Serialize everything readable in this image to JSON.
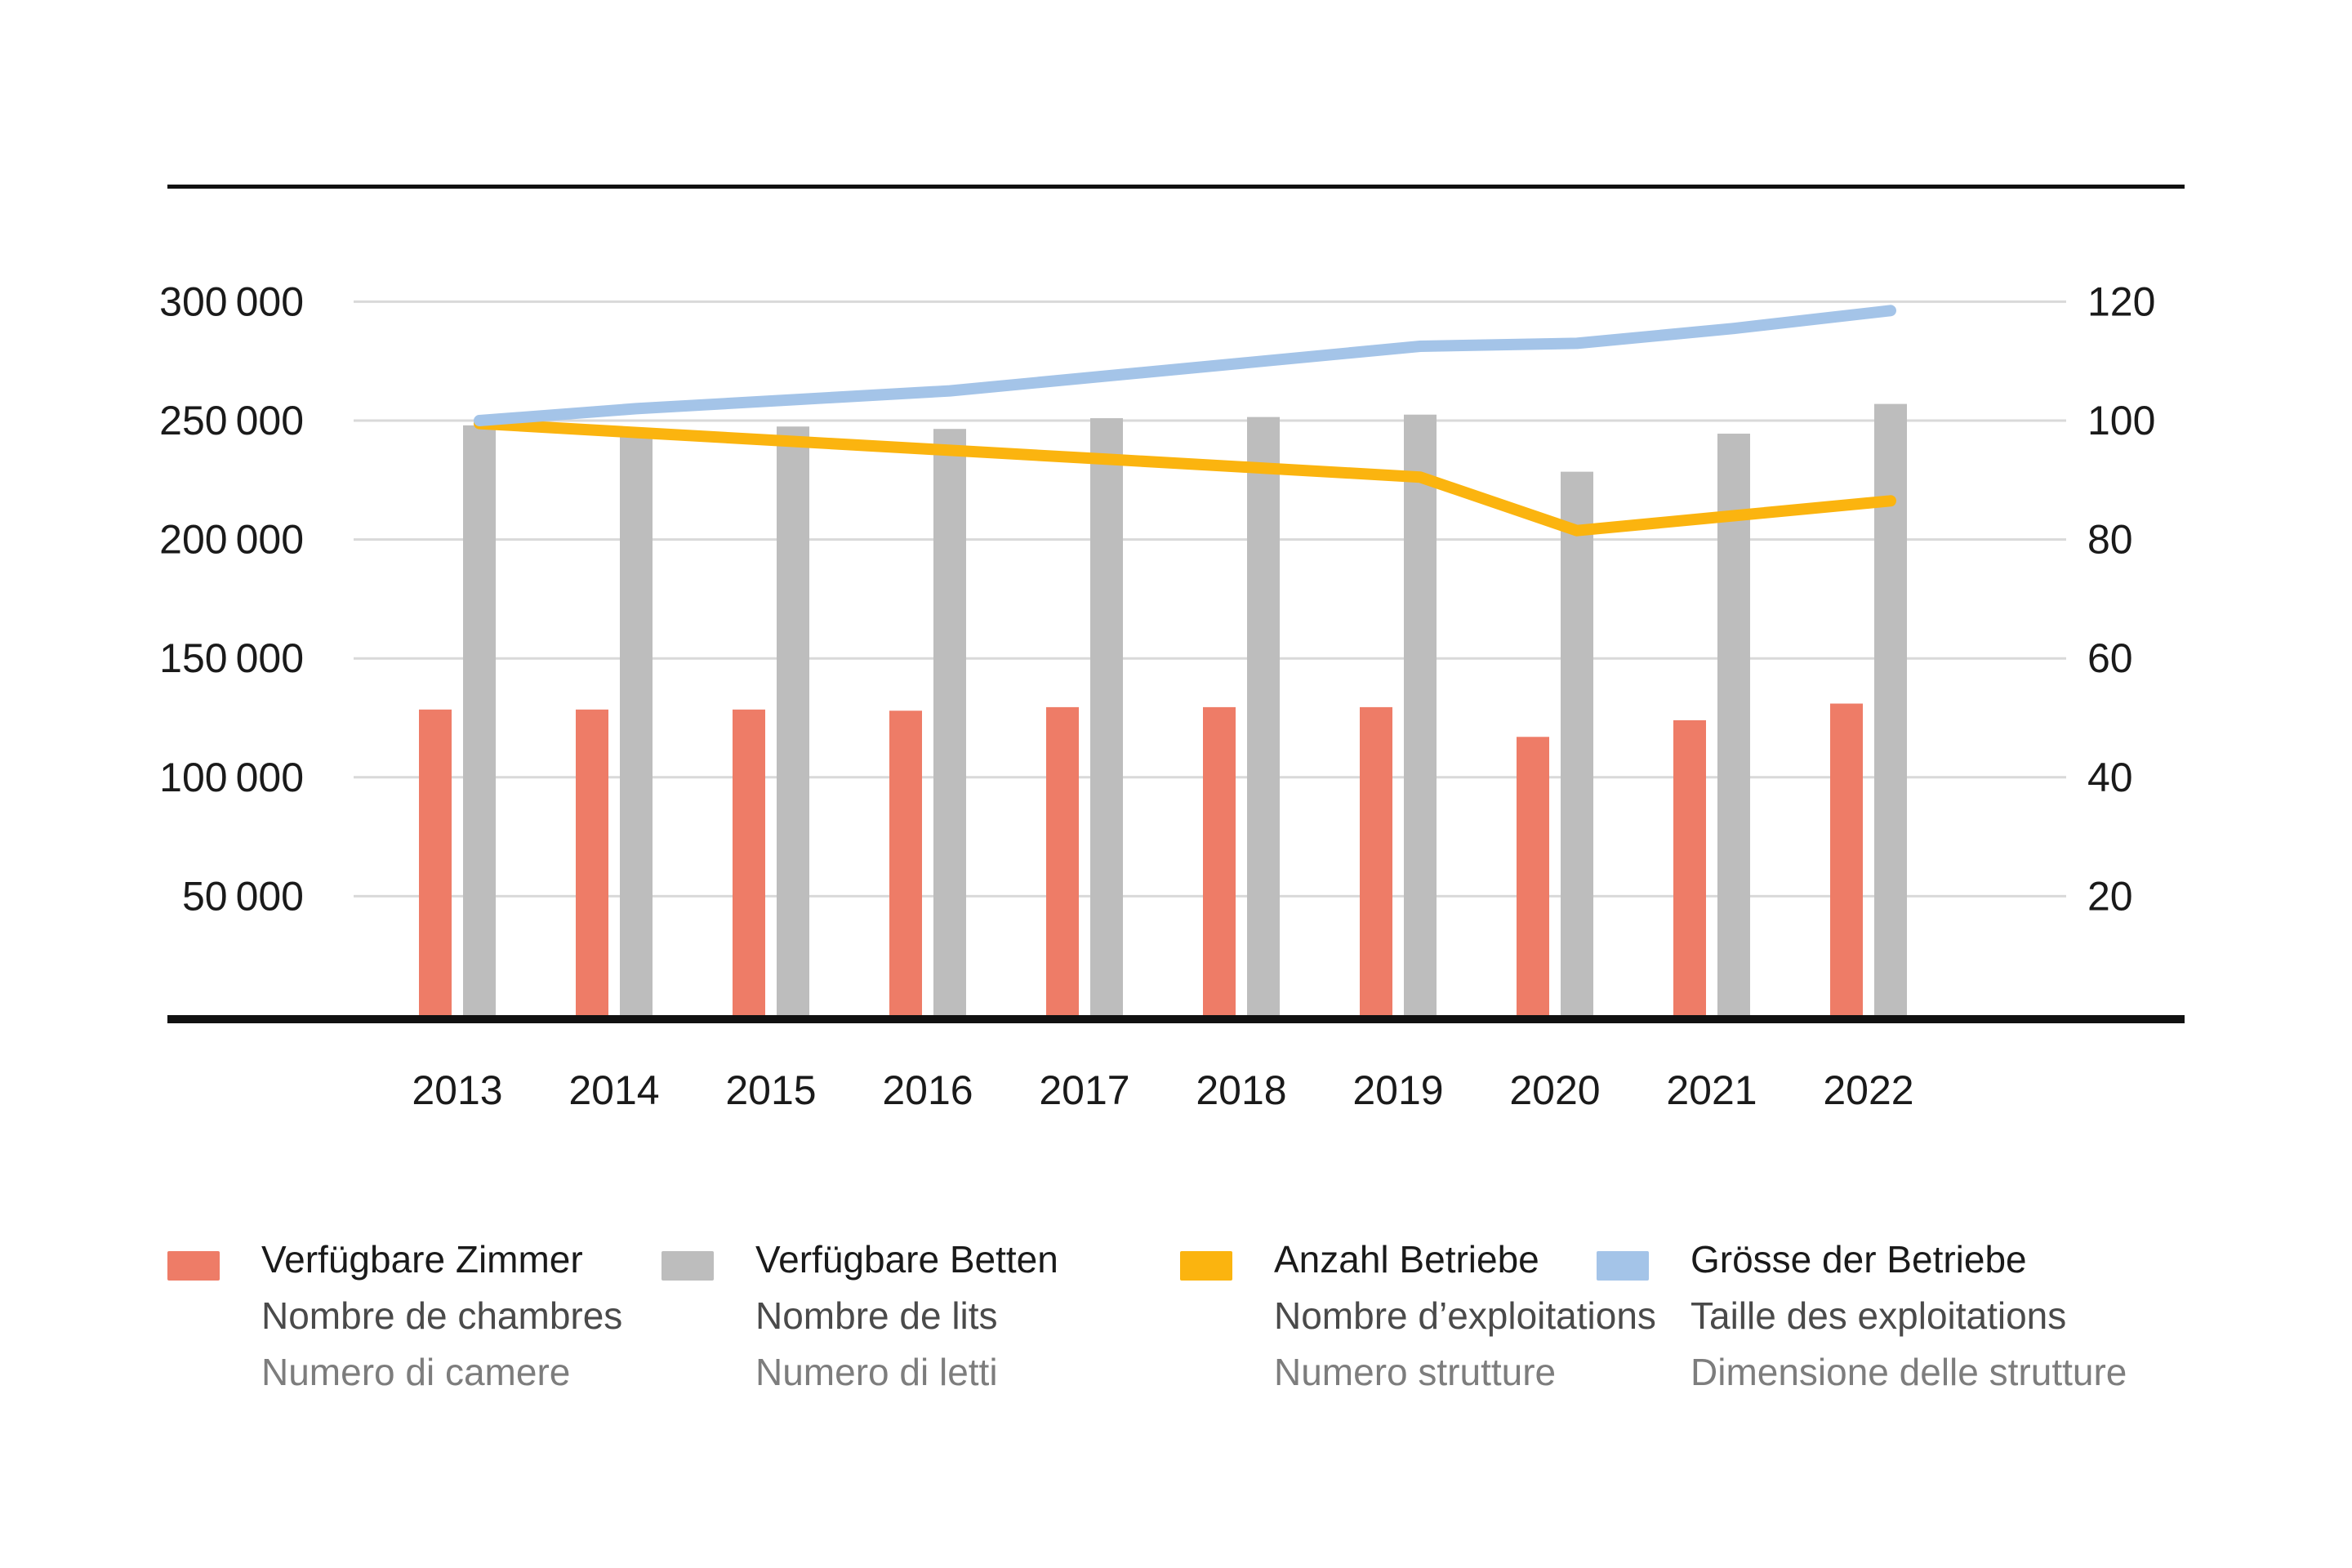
{
  "chart_data": {
    "type": "bar+line",
    "title": "",
    "categories": [
      "2013",
      "2014",
      "2015",
      "2016",
      "2017",
      "2018",
      "2019",
      "2020",
      "2021",
      "2022"
    ],
    "series": [
      {
        "name": "Verfügbare Zimmer",
        "kind": "bar",
        "axis": "left",
        "color": "#ee7c67",
        "values": [
          128500,
          128500,
          128500,
          128000,
          129500,
          129500,
          129500,
          117000,
          124000,
          131000
        ]
      },
      {
        "name": "Verfügbare Betten",
        "kind": "bar",
        "axis": "left",
        "color": "#bdbdbd",
        "values": [
          248000,
          246000,
          247500,
          246500,
          251000,
          251500,
          252500,
          228500,
          244500,
          257000
        ]
      },
      {
        "name": "Anzahl Betriebe",
        "kind": "line",
        "axis": "right",
        "color": "#fbb40f",
        "values": [
          99.5,
          98,
          96.5,
          95,
          93.5,
          92,
          90.5,
          81.5,
          84,
          86.5
        ]
      },
      {
        "name": "Grösse der Betriebe",
        "kind": "line",
        "axis": "right",
        "color": "#a4c4e8",
        "values": [
          100,
          102,
          103.5,
          105,
          107.5,
          110,
          112.5,
          113,
          115.5,
          118.5
        ]
      }
    ],
    "left_axis": {
      "ticks": [
        {
          "v": 300000,
          "label": "300 000"
        },
        {
          "v": 250000,
          "label": "250 000"
        },
        {
          "v": 200000,
          "label": "200 000"
        },
        {
          "v": 150000,
          "label": "150 000"
        },
        {
          "v": 100000,
          "label": "100 000"
        },
        {
          "v": 50000,
          "label": "50 000"
        }
      ],
      "range": [
        0,
        300000
      ]
    },
    "right_axis": {
      "ticks": [
        {
          "v": 120,
          "label": "120"
        },
        {
          "v": 100,
          "label": "100"
        },
        {
          "v": 80,
          "label": "80"
        },
        {
          "v": 60,
          "label": "60"
        },
        {
          "v": 40,
          "label": "40"
        },
        {
          "v": 20,
          "label": "20"
        }
      ],
      "range": [
        0,
        120
      ]
    },
    "grid": true,
    "legend_position": "bottom"
  },
  "legend": {
    "items": [
      {
        "swatch_color": "#ee7c67",
        "de": "Verfügbare Zimmer",
        "fr": "Nombre de chambres",
        "it": "Numero di camere"
      },
      {
        "swatch_color": "#bdbdbd",
        "de": "Verfügbare Betten",
        "fr": "Nombre de lits",
        "it": "Numero di letti"
      },
      {
        "swatch_color": "#fbb40f",
        "de": "Anzahl Betriebe",
        "fr": "Nombre d’exploitations",
        "it": "Numero strutture"
      },
      {
        "swatch_color": "#a4c4e8",
        "de": "Grösse der Betriebe",
        "fr": "Taille des exploitations",
        "it": "Dimensione delle strutture"
      }
    ]
  },
  "style": {
    "gridline_color": "#d9d9d9",
    "axis_color": "#111111",
    "tick_label_color": "#1a1a1a"
  }
}
